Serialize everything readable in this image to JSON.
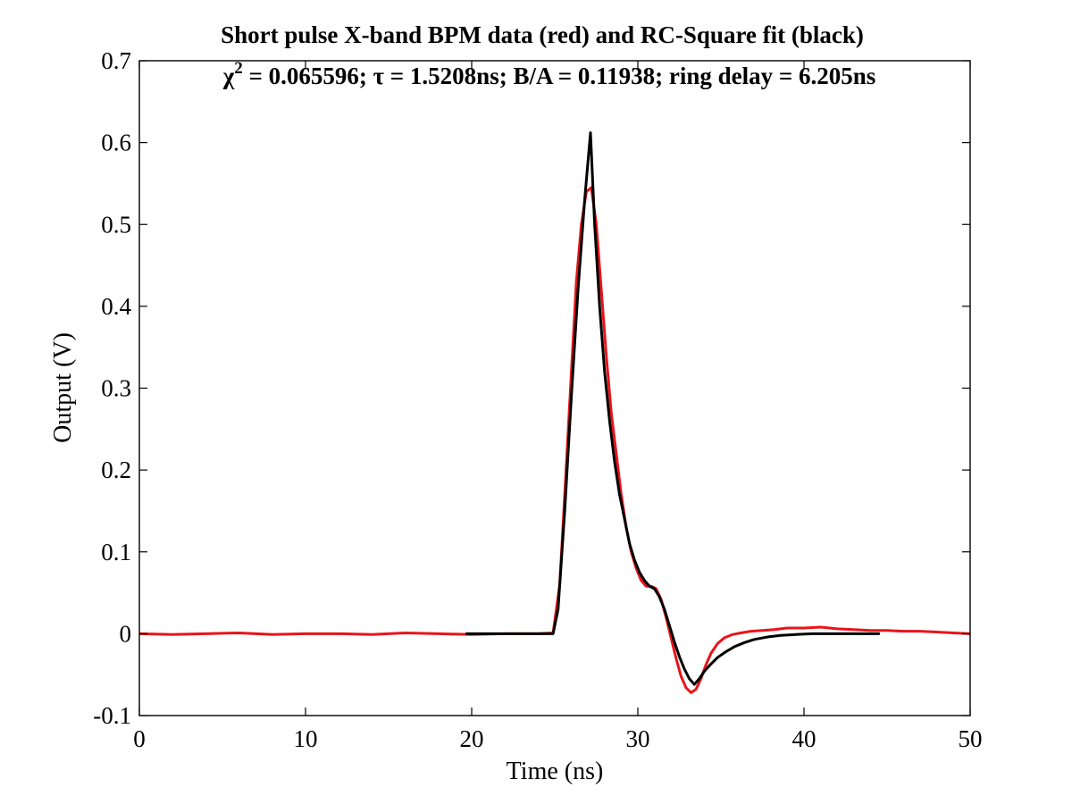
{
  "chart_data": {
    "type": "line",
    "title": "Short pulse X-band BPM data (red) and RC-Square fit (black)",
    "subtitle": {
      "chi_symbol": "χ",
      "chi_exp": "2",
      "chi_rest": " = 0.065596; ",
      "tau_symbol": "τ",
      "tau_rest": " = 1.5208ns; B/A = 0.11938; ring delay = 6.205ns"
    },
    "xlabel": "Time (ns)",
    "ylabel": "Output (V)",
    "xlim": [
      0,
      50
    ],
    "ylim": [
      -0.1,
      0.7
    ],
    "x_ticks": [
      0,
      10,
      20,
      30,
      40,
      50
    ],
    "x_tick_labels": [
      "0",
      "10",
      "20",
      "30",
      "40",
      "50"
    ],
    "y_ticks": [
      -0.1,
      0,
      0.1,
      0.2,
      0.3,
      0.4,
      0.5,
      0.6,
      0.7
    ],
    "y_tick_labels": [
      "-0.1",
      "0",
      "0.1",
      "0.2",
      "0.3",
      "0.4",
      "0.5",
      "0.6",
      "0.7"
    ],
    "grid": false,
    "series": [
      {
        "color": "#e8141a",
        "x": [
          0,
          2,
          4,
          6,
          8,
          10,
          12,
          14,
          16,
          18,
          20,
          22,
          24,
          24.9,
          25.3,
          25.6,
          26.0,
          26.3,
          26.6,
          26.9,
          27.2,
          27.5,
          27.8,
          28.1,
          28.4,
          28.7,
          29.0,
          29.3,
          29.6,
          29.9,
          30.2,
          30.5,
          30.8,
          31.1,
          31.4,
          31.7,
          32.0,
          32.3,
          32.6,
          32.9,
          33.2,
          33.5,
          33.8,
          34.1,
          34.4,
          34.8,
          35.2,
          35.7,
          36.2,
          36.8,
          37.5,
          38.2,
          39.0,
          40.0,
          41.0,
          42.0,
          43.0,
          44.0,
          45.0,
          46.0,
          47.0,
          48.0,
          49.0,
          50.0
        ],
        "y": [
          0.0,
          -0.001,
          0.0,
          0.001,
          -0.001,
          0.0,
          0.0,
          -0.001,
          0.001,
          0.0,
          -0.001,
          0.0,
          0.0,
          0.001,
          0.06,
          0.17,
          0.32,
          0.43,
          0.5,
          0.54,
          0.545,
          0.5,
          0.42,
          0.34,
          0.27,
          0.22,
          0.17,
          0.13,
          0.1,
          0.08,
          0.065,
          0.058,
          0.058,
          0.055,
          0.042,
          0.02,
          -0.005,
          -0.03,
          -0.052,
          -0.066,
          -0.072,
          -0.068,
          -0.055,
          -0.038,
          -0.024,
          -0.012,
          -0.005,
          -0.001,
          0.001,
          0.003,
          0.004,
          0.005,
          0.007,
          0.007,
          0.008,
          0.006,
          0.005,
          0.004,
          0.004,
          0.003,
          0.003,
          0.002,
          0.001,
          0.0
        ]
      },
      {
        "color": "#000000",
        "x": [
          19.7,
          22.0,
          24.0,
          24.9,
          25.2,
          25.6,
          26.0,
          26.4,
          26.8,
          27.15,
          27.4,
          27.7,
          28.0,
          28.3,
          28.6,
          28.9,
          29.2,
          29.5,
          29.8,
          30.1,
          30.4,
          30.7,
          31.0,
          31.3,
          31.6,
          31.9,
          32.2,
          32.5,
          32.8,
          33.1,
          33.4,
          33.7,
          34.0,
          34.4,
          34.8,
          35.3,
          35.8,
          36.4,
          37.0,
          37.8,
          38.6,
          39.5,
          40.5,
          41.5,
          42.5,
          43.5,
          44.5
        ],
        "y": [
          0.0,
          0.0,
          0.0,
          0.0,
          0.03,
          0.15,
          0.29,
          0.42,
          0.53,
          0.612,
          0.5,
          0.4,
          0.32,
          0.26,
          0.21,
          0.17,
          0.14,
          0.11,
          0.09,
          0.075,
          0.065,
          0.058,
          0.055,
          0.045,
          0.03,
          0.01,
          -0.01,
          -0.028,
          -0.043,
          -0.055,
          -0.062,
          -0.055,
          -0.046,
          -0.037,
          -0.029,
          -0.022,
          -0.016,
          -0.011,
          -0.007,
          -0.004,
          -0.002,
          -0.001,
          0.0,
          0.0,
          0.0,
          0.0,
          0.0
        ]
      }
    ]
  }
}
